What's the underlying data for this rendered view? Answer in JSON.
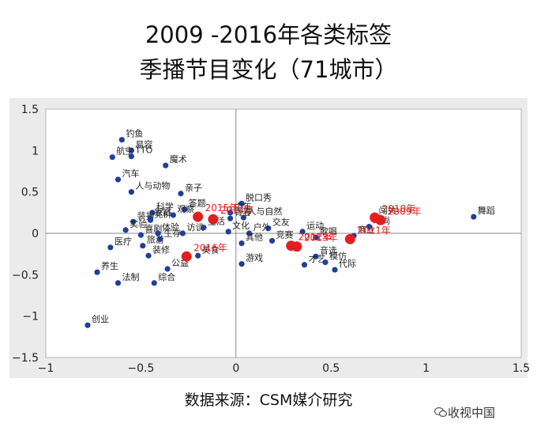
{
  "title_line1": "2009 -2016年各类标签",
  "title_line2": "季播节目变化（71城市）",
  "source": "数据来源：CSM媒介研究",
  "watermark": "收视中国",
  "chart_data": {
    "type": "scatter",
    "xlim": [
      -1,
      1.5
    ],
    "ylim": [
      -1.5,
      1.5
    ],
    "x_ticks": [
      -1,
      -0.5,
      0,
      0.5,
      1,
      1.5
    ],
    "x_tick_labels": [
      "−1",
      "−0.5",
      "0",
      "0.5",
      "1",
      "1.5"
    ],
    "y_ticks": [
      -1.5,
      -1,
      -0.5,
      0,
      0.5,
      1,
      1.5
    ],
    "y_tick_labels": [
      "−1.5",
      "−1",
      "−0.5",
      "0",
      "0.5",
      "1",
      "1.5"
    ],
    "grid": false,
    "colors": {
      "tag": "#1f3f9a",
      "year": "#e02020",
      "plot_bg": "#ffffff",
      "outer_bg": "#ebebeb",
      "axis": "#8a8a8a"
    },
    "tags": [
      {
        "label": "钓鱼",
        "x": -0.6,
        "y": 1.13
      },
      {
        "label": "易容",
        "x": -0.55,
        "y": 1.0
      },
      {
        "label": "航空",
        "x": -0.65,
        "y": 0.92
      },
      {
        "label": "TTO",
        "x": -0.55,
        "y": 0.93
      },
      {
        "label": "魔术",
        "x": -0.37,
        "y": 0.82
      },
      {
        "label": "汽车",
        "x": -0.62,
        "y": 0.65
      },
      {
        "label": "人与动物",
        "x": -0.55,
        "y": 0.5
      },
      {
        "label": "亲子",
        "x": -0.29,
        "y": 0.48
      },
      {
        "label": "答题",
        "x": -0.27,
        "y": 0.29
      },
      {
        "label": "科学",
        "x": -0.44,
        "y": 0.25
      },
      {
        "label": "观察",
        "x": -0.33,
        "y": 0.22
      },
      {
        "label": "装扮",
        "x": -0.54,
        "y": 0.14
      },
      {
        "label": "竞价",
        "x": -0.45,
        "y": 0.16
      },
      {
        "label": "家庭",
        "x": -0.45,
        "y": 0.18
      },
      {
        "label": "实验",
        "x": -0.58,
        "y": 0.04
      },
      {
        "label": "喜剧",
        "x": -0.5,
        "y": -0.02
      },
      {
        "label": "体验",
        "x": -0.41,
        "y": -0.0
      },
      {
        "label": "访谈",
        "x": -0.28,
        "y": -0.0
      },
      {
        "label": "旅游",
        "x": -0.49,
        "y": -0.15
      },
      {
        "label": "生存",
        "x": -0.4,
        "y": -0.07
      },
      {
        "label": "医疗",
        "x": -0.66,
        "y": -0.17
      },
      {
        "label": "装修",
        "x": -0.46,
        "y": -0.27
      },
      {
        "label": "公益",
        "x": -0.36,
        "y": -0.43
      },
      {
        "label": "综合",
        "x": -0.43,
        "y": -0.6
      },
      {
        "label": "养生",
        "x": -0.73,
        "y": -0.47
      },
      {
        "label": "法制",
        "x": -0.62,
        "y": -0.6
      },
      {
        "label": "创业",
        "x": -0.78,
        "y": -1.11
      },
      {
        "label": "脱口秀",
        "x": 0.03,
        "y": 0.36
      },
      {
        "label": "中年",
        "x": -0.03,
        "y": 0.25
      },
      {
        "label": "青春",
        "x": -0.03,
        "y": 0.18
      },
      {
        "label": "人与自然",
        "x": 0.04,
        "y": 0.19
      },
      {
        "label": "生活",
        "x": -0.17,
        "y": 0.07
      },
      {
        "label": "文化",
        "x": -0.04,
        "y": 0.02
      },
      {
        "label": "交友",
        "x": 0.17,
        "y": 0.06
      },
      {
        "label": "户外",
        "x": 0.07,
        "y": -0.0
      },
      {
        "label": "其他",
        "x": 0.03,
        "y": -0.12
      },
      {
        "label": "竞赛",
        "x": 0.19,
        "y": -0.09
      },
      {
        "label": "美食",
        "x": -0.2,
        "y": -0.27
      },
      {
        "label": "游戏",
        "x": 0.03,
        "y": -0.37
      },
      {
        "label": "运动",
        "x": 0.35,
        "y": 0.02
      },
      {
        "label": "歌唱",
        "x": 0.42,
        "y": -0.05
      },
      {
        "label": "商业",
        "x": 0.62,
        "y": -0.03
      },
      {
        "label": "音选",
        "x": 0.42,
        "y": -0.28
      },
      {
        "label": "才艺",
        "x": 0.36,
        "y": -0.38
      },
      {
        "label": "模仿",
        "x": 0.47,
        "y": -0.35
      },
      {
        "label": "代际",
        "x": 0.52,
        "y": -0.44
      },
      {
        "label": "闯关",
        "x": 0.73,
        "y": 0.2
      },
      {
        "label": "时尚",
        "x": 0.7,
        "y": 0.08
      },
      {
        "label": "舞蹈",
        "x": 1.25,
        "y": 0.2
      }
    ],
    "years": [
      {
        "label": "2009年",
        "x": 0.76,
        "y": 0.16
      },
      {
        "label": "2010年",
        "x": 0.73,
        "y": 0.19
      },
      {
        "label": "2011年",
        "x": 0.6,
        "y": -0.07
      },
      {
        "label": "2012年",
        "x": 0.29,
        "y": -0.15
      },
      {
        "label": "2013年",
        "x": 0.32,
        "y": -0.16
      },
      {
        "label": "2014年",
        "x": -0.12,
        "y": 0.17
      },
      {
        "label": "2015年",
        "x": -0.2,
        "y": 0.2
      },
      {
        "label": "2016年",
        "x": -0.26,
        "y": -0.28
      }
    ]
  }
}
